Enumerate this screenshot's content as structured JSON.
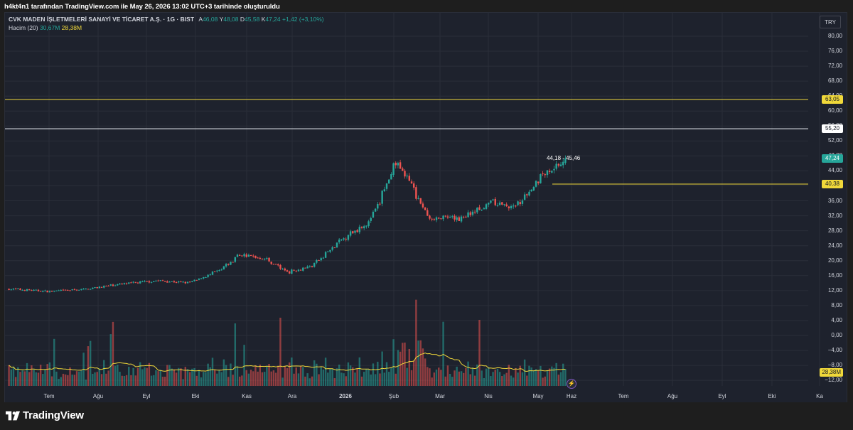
{
  "header": {
    "created_by": "h4kt4n1 tarafından TradingView.com ile May 26, 2026 13:02 UTC+3 tarihinde oluşturuldu"
  },
  "legend": {
    "symbol": "CVK MADEN İŞLETMELERİ SANAYİ VE TİCARET A.Ş. · 1G · BIST",
    "o_label": "A",
    "o_value": "46,08",
    "h_label": "Y",
    "h_value": "48,08",
    "l_label": "D",
    "l_value": "45,58",
    "c_label": "K",
    "c_value": "47,24",
    "change": "+1,42 (+3,10%)",
    "volume_label": "Hacim (20)",
    "volume_value": "30,67M",
    "volume_ma_value": "28,38M"
  },
  "currency_button": "TRY",
  "price_axis": [
    "80,00",
    "76,00",
    "72,00",
    "68,00",
    "64,00",
    "60,00",
    "56,00",
    "52,00",
    "48,00",
    "44,00",
    "40,00",
    "36,00",
    "32,00",
    "28,00",
    "24,00",
    "20,00",
    "16,00",
    "12,00",
    "8,00",
    "4,00",
    "0,00",
    "−4,00",
    "−8,00",
    "−12,00"
  ],
  "price_tags": {
    "level_1": "63,05",
    "level_2": "55,20",
    "last_price": "47,24",
    "level_3": "40,38",
    "volume_ma": "28,38M"
  },
  "range_label": "44,18 - 45,46",
  "time_axis": [
    "Tem",
    "Ağu",
    "Eyl",
    "Eki",
    "Kas",
    "Ara",
    "2026",
    "Şub",
    "Mar",
    "Nis",
    "May",
    "Haz",
    "Tem",
    "Ağu",
    "Eyl",
    "Eki",
    "Ka"
  ],
  "footer": {
    "brand": "TradingView"
  },
  "colors": {
    "up": "#26a69a",
    "down": "#ef5350",
    "level_line": "#f0d83a",
    "white_line": "#d1d4dc",
    "volume_ma": "#f0d83a",
    "background": "#1e222d"
  },
  "chart_data": {
    "type": "candlestick",
    "price_levels": [
      63.05,
      55.2,
      40.38
    ],
    "last_price": 47.24,
    "range": [
      44.18,
      45.46
    ],
    "ohlc_last": {
      "open": 46.08,
      "high": 48.08,
      "low": 45.58,
      "close": 47.24
    },
    "close_path": [
      {
        "date": "2025-06-15",
        "close": 12.3
      },
      {
        "date": "2025-07-10",
        "close": 11.6
      },
      {
        "date": "2025-08-01",
        "close": 12.2
      },
      {
        "date": "2025-08-20",
        "close": 13.4
      },
      {
        "date": "2025-09-15",
        "close": 14.5
      },
      {
        "date": "2025-10-05",
        "close": 13.9
      },
      {
        "date": "2025-10-25",
        "close": 17.5
      },
      {
        "date": "2025-11-05",
        "close": 21.5
      },
      {
        "date": "2025-11-20",
        "close": 20.5
      },
      {
        "date": "2025-12-05",
        "close": 16.8
      },
      {
        "date": "2025-12-20",
        "close": 18.5
      },
      {
        "date": "2026-01-10",
        "close": 26.5
      },
      {
        "date": "2026-01-25",
        "close": 30.5
      },
      {
        "date": "2026-02-10",
        "close": 46.0
      },
      {
        "date": "2026-02-20",
        "close": 40.0
      },
      {
        "date": "2026-03-01",
        "close": 31.5
      },
      {
        "date": "2026-03-20",
        "close": 31.0
      },
      {
        "date": "2026-04-10",
        "close": 35.5
      },
      {
        "date": "2026-04-25",
        "close": 34.0
      },
      {
        "date": "2026-05-10",
        "close": 42.5
      },
      {
        "date": "2026-05-26",
        "close": 47.24
      }
    ]
  }
}
